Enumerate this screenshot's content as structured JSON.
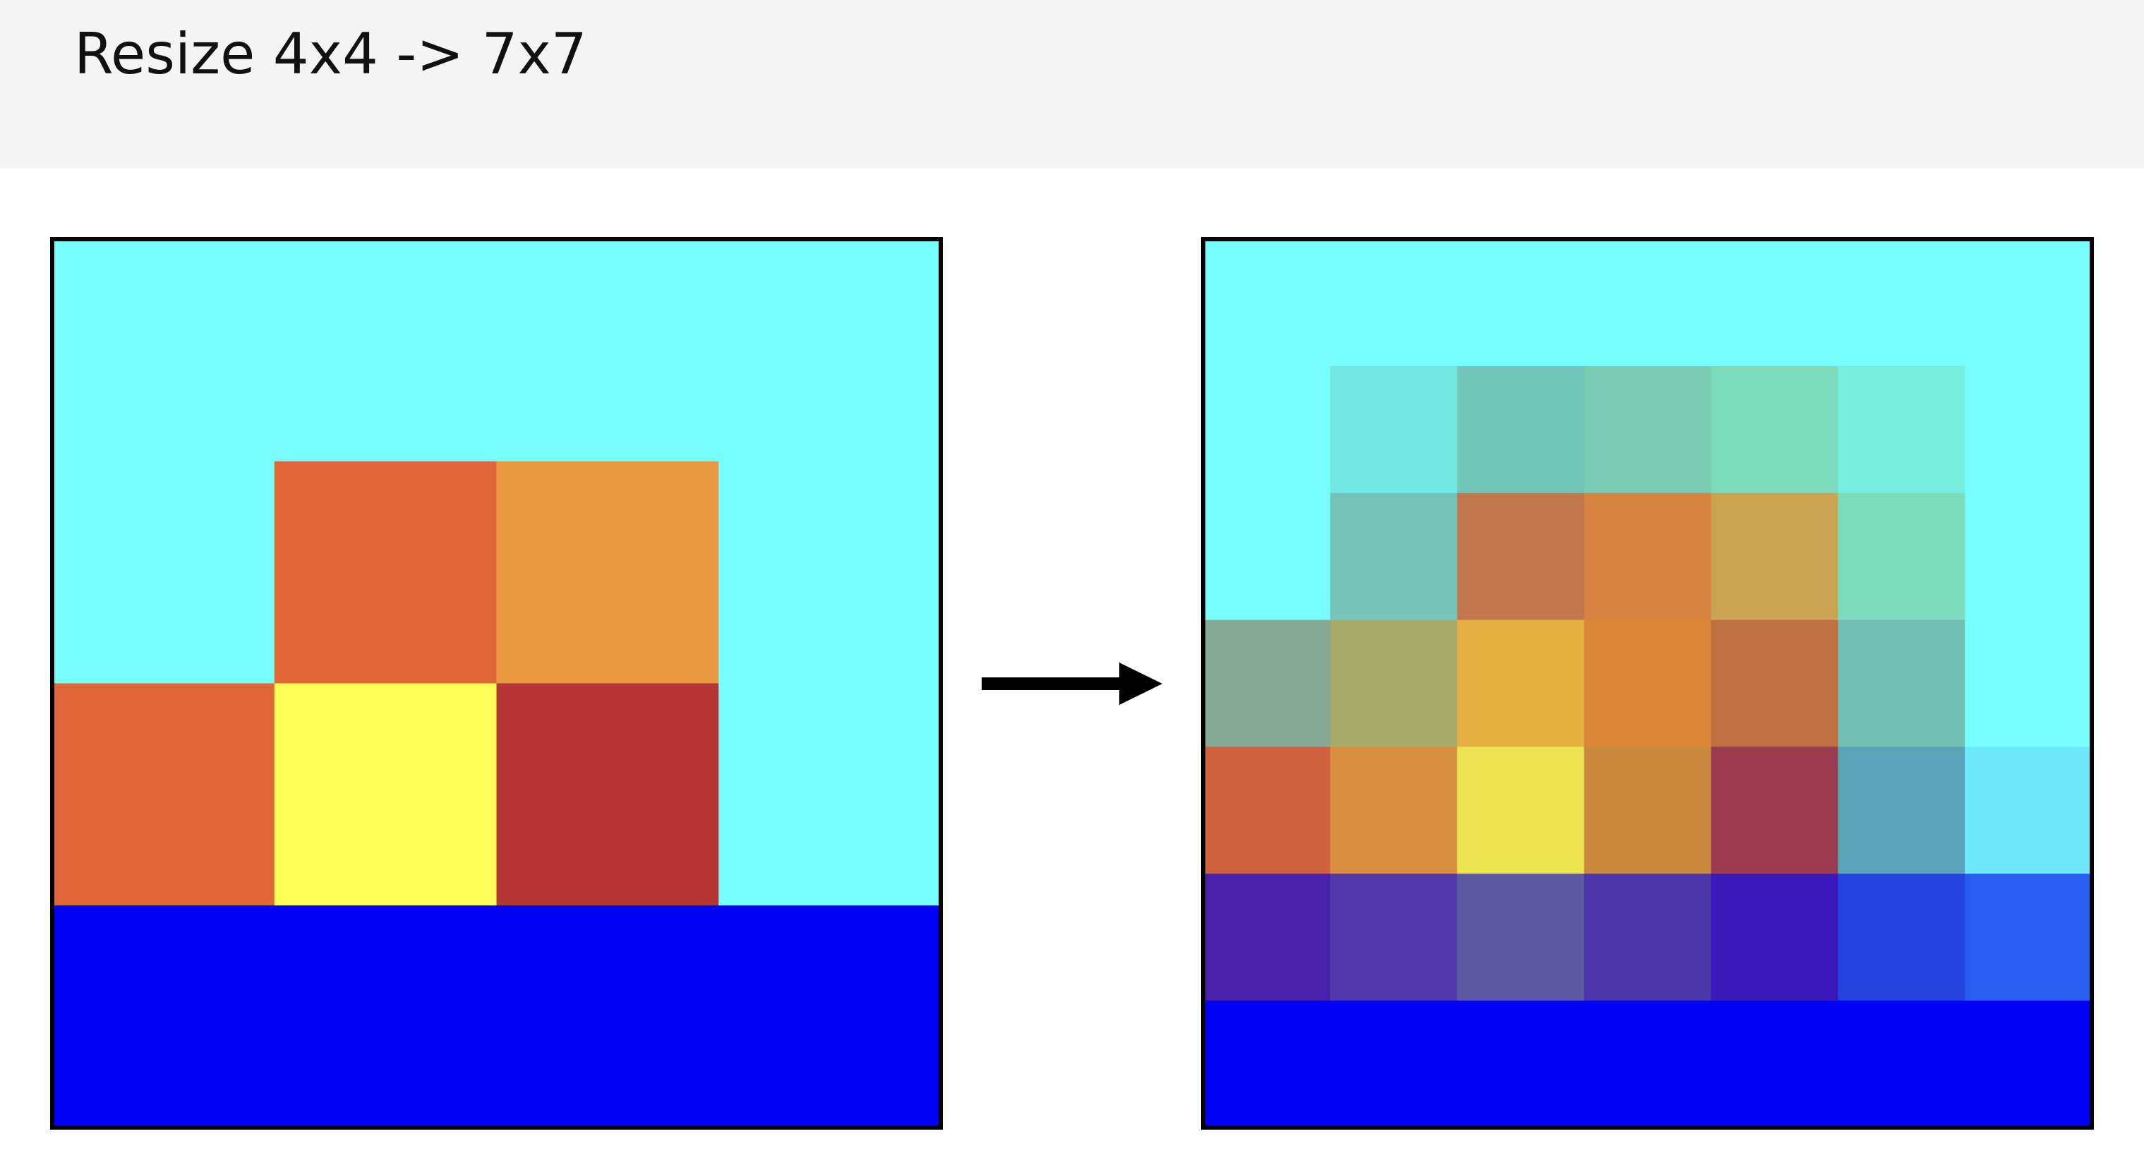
{
  "title": "Resize 4x4 -> 7x7",
  "grids": [
    {
      "cells": [
        [
          "#77fefe",
          "#77fefe",
          "#77fefe",
          "#77fefe"
        ],
        [
          "#77fefe",
          "#e0663a",
          "#ea9a40",
          "#77fefe"
        ],
        [
          "#e0663a",
          "#ffff55",
          "#b33535",
          "#77fefe"
        ],
        [
          "#0000f5",
          "#0000f5",
          "#0000f5",
          "#0000f5"
        ]
      ]
    },
    {
      "cells": [
        [
          "#77fdfd",
          "#77fdfd",
          "#77fdfd",
          "#77fdfd",
          "#77fdfd",
          "#77fdfd",
          "#77fdfd"
        ],
        [
          "#77fdfd",
          "#72e8e0",
          "#72c6ba",
          "#79cdb2",
          "#7cdbba",
          "#74ecde",
          "#77fdfd"
        ],
        [
          "#77fdfd",
          "#74c5b9",
          "#c3774c",
          "#d58442",
          "#cca352",
          "#7cdbba",
          "#77fdfd"
        ],
        [
          "#85a994",
          "#a8aa6c",
          "#e4b044",
          "#dc8738",
          "#bf6e42",
          "#72c0b5",
          "#77fdfd"
        ],
        [
          "#d06040",
          "#d98e40",
          "#ebe350",
          "#c88a3e",
          "#9a3b50",
          "#5aa4b8",
          "#70e8fc"
        ],
        [
          "#4a22aa",
          "#5338aa",
          "#5d5aa2",
          "#4a35aa",
          "#3a18ba",
          "#2244dc",
          "#285ef0"
        ],
        [
          "#0000f5",
          "#0000f5",
          "#0000f5",
          "#0000f5",
          "#0000f5",
          "#0000f5",
          "#0000f5"
        ]
      ]
    }
  ]
}
